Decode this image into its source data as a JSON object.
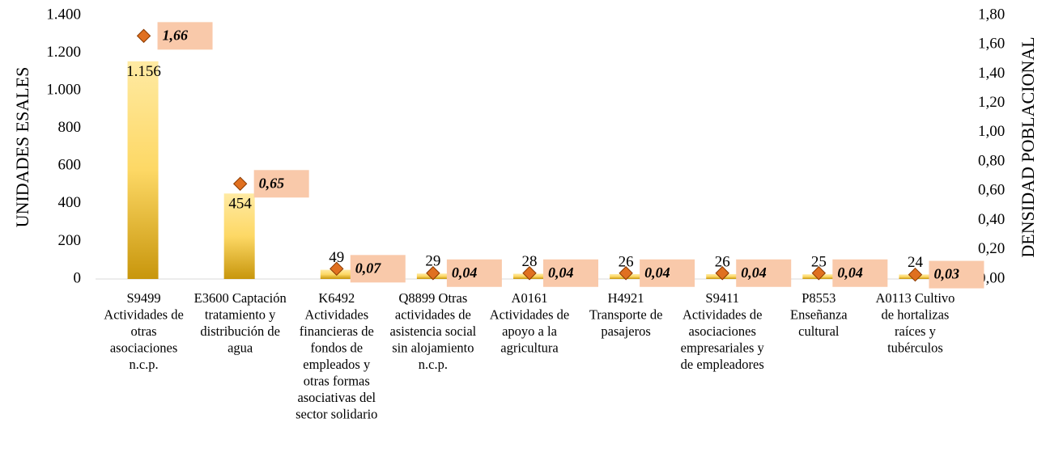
{
  "chart_data": {
    "type": "bar_marker",
    "ylabel": "UNIDADES ESALES",
    "y2label": "DENSIDAD POBLACIONAL",
    "categories": [
      "S9499 Actividades de otras asociaciones n.c.p.",
      "E3600 Captación tratamiento y distribución de agua",
      "K6492 Actividades financieras de fondos de empleados y otras formas asociativas del sector solidario",
      "Q8899 Otras actividades de asistencia social sin alojamiento n.c.p.",
      "A0161 Actividades de apoyo a la agricultura",
      "H4921 Transporte de pasajeros",
      "S9411 Actividades de asociaciones empresariales y de empleadores",
      "P8553 Enseñanza cultural",
      "A0113 Cultivo de hortalizas raíces y tubérculos"
    ],
    "series": [
      {
        "name": "UNIDADES ESALES",
        "color": "#f5c518",
        "values": [
          1156,
          454,
          49,
          29,
          28,
          26,
          26,
          25,
          24
        ],
        "value_labels": [
          "1.156",
          "454",
          "49",
          "29",
          "28",
          "26",
          "26",
          "25",
          "24"
        ]
      },
      {
        "name": "DENSIDAD POBLACIONAL",
        "color": "#e07020",
        "axis": "y2",
        "values": [
          1.66,
          0.65,
          0.07,
          0.04,
          0.04,
          0.04,
          0.04,
          0.04,
          0.03
        ],
        "value_labels": [
          "1,66",
          "0,65",
          "0,07",
          "0,04",
          "0,04",
          "0,04",
          "0,04",
          "0,04",
          "0,03"
        ]
      }
    ],
    "ylim": [
      0,
      1400
    ],
    "yticks": [
      0,
      200,
      400,
      600,
      800,
      {
        "value": 1000,
        "label": "1.000"
      },
      {
        "value": 1200,
        "label": "1.200"
      },
      {
        "value": 1400,
        "label": "1.400"
      }
    ],
    "y2lim": [
      0,
      1.8
    ],
    "y2ticks": [
      {
        "value": 0,
        "label": "0,00"
      },
      {
        "value": 0.2,
        "label": "0,20"
      },
      {
        "value": 0.4,
        "label": "0,40"
      },
      {
        "value": 0.6,
        "label": "0,60"
      },
      {
        "value": 0.8,
        "label": "0,80"
      },
      {
        "value": 1.0,
        "label": "1,00"
      },
      {
        "value": 1.2,
        "label": "1,20"
      },
      {
        "value": 1.4,
        "label": "1,40"
      },
      {
        "value": 1.6,
        "label": "1,60"
      },
      {
        "value": 1.8,
        "label": "1,80"
      }
    ],
    "grid": false
  }
}
